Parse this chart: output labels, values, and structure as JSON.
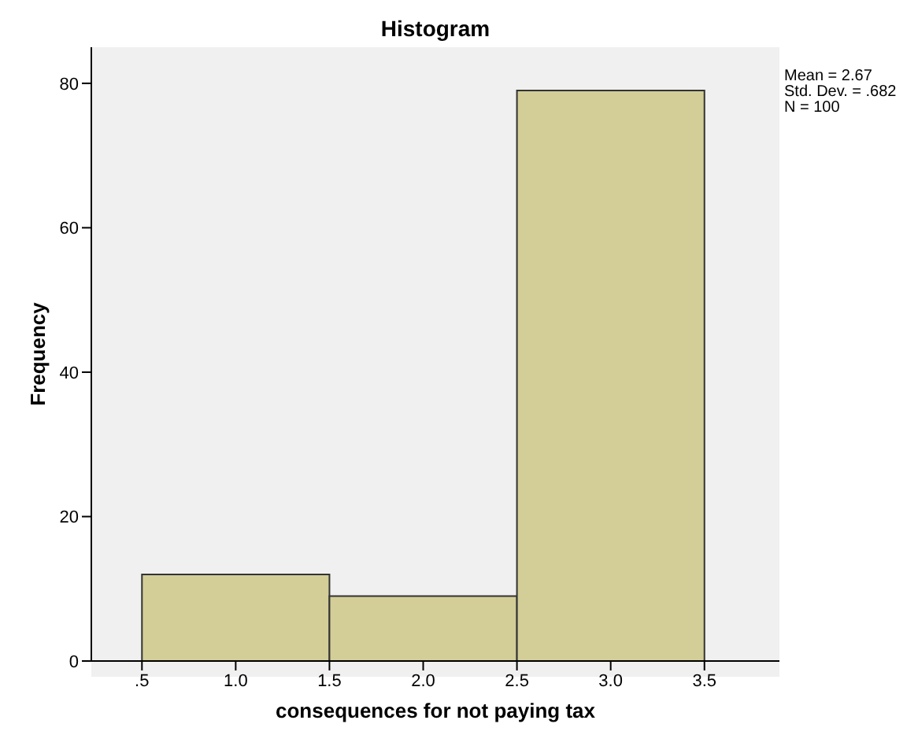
{
  "chart_data": {
    "type": "histogram",
    "title": "Histogram",
    "xlabel": "consequences for not paying tax",
    "ylabel": "Frequency",
    "bins": [
      0.5,
      1.5,
      2.5,
      3.5
    ],
    "values": [
      12,
      9,
      79
    ],
    "color": "#d3ce97",
    "xlim": [
      0.23,
      3.9
    ],
    "xticks": [
      {
        "value": 0.5,
        "label": ".5"
      },
      {
        "value": 1,
        "label": "1.0"
      },
      {
        "value": 1.5,
        "label": "1.5"
      },
      {
        "value": 2,
        "label": "2.0"
      },
      {
        "value": 2.5,
        "label": "2.5"
      },
      {
        "value": 3,
        "label": "3.0"
      },
      {
        "value": 3.5,
        "label": "3.5"
      }
    ],
    "ylim": [
      0,
      85
    ],
    "yticks": [
      0,
      20,
      40,
      60,
      80
    ],
    "annotations": [
      "Mean = 2.67",
      "Std. Dev. = .682",
      "N = 100"
    ]
  }
}
